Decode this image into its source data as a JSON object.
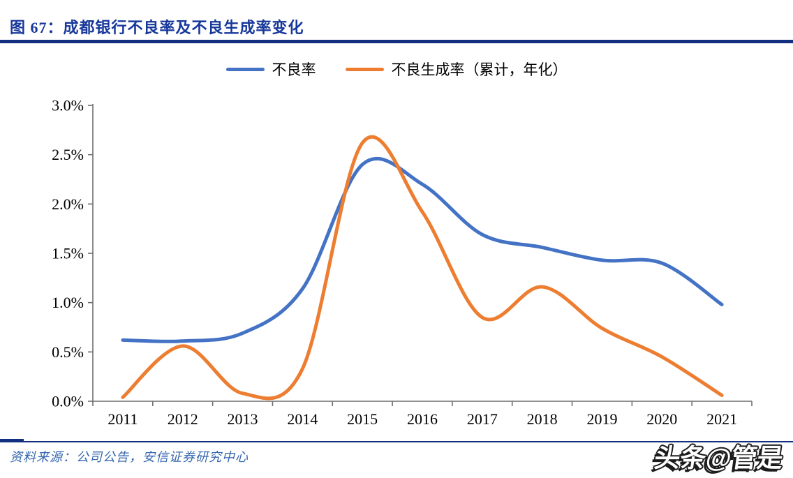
{
  "header": {
    "figure_label": "图 67：",
    "title": "图 67：成都银行不良率及不良生成率变化"
  },
  "chart_data": {
    "type": "line",
    "title": "成都银行不良率及不良生成率变化",
    "categories": [
      "2011",
      "2012",
      "2013",
      "2014",
      "2015",
      "2016",
      "2017",
      "2018",
      "2019",
      "2020",
      "2021"
    ],
    "series": [
      {
        "name": "不良率",
        "color": "#4472C4",
        "values": [
          0.62,
          0.61,
          0.69,
          1.14,
          2.4,
          2.2,
          1.69,
          1.56,
          1.43,
          1.4,
          0.98
        ]
      },
      {
        "name": "不良生成率（累计，年化）",
        "color": "#ED7D31",
        "values": [
          0.04,
          0.56,
          0.08,
          0.33,
          2.62,
          1.92,
          0.85,
          1.16,
          0.74,
          0.45,
          0.06
        ]
      }
    ],
    "xlabel": "",
    "ylabel": "",
    "ylim": [
      0.0,
      3.0
    ],
    "ytick_step": 0.5,
    "ytick_labels": [
      "0.0%",
      "0.5%",
      "1.0%",
      "1.5%",
      "2.0%",
      "2.5%",
      "3.0%"
    ],
    "grid": false,
    "legend_position": "top"
  },
  "footer": {
    "source": "资料来源：公司公告，安信证券研究中心",
    "watermark": "头条@管是"
  },
  "colors": {
    "title_blue": "#17389B",
    "rule_navy": "#122F80",
    "source_blue": "#3566AD",
    "axis_gray": "#6F6F6F",
    "tick_text": "#000000"
  }
}
